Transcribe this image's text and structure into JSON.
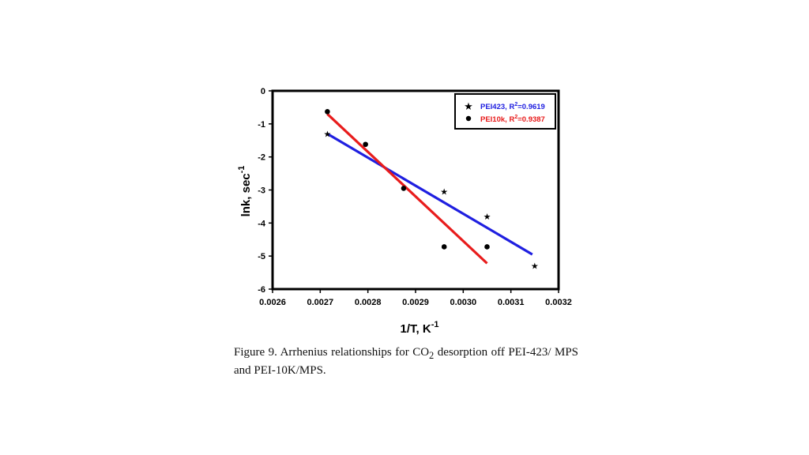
{
  "caption": {
    "label": "Figure 9.",
    "text_before_sub": " Arrhenius relationships for CO",
    "subscript": "2",
    "text_after_sub": " desorption off PEI-423/ MPS and PEI-10K/MPS."
  },
  "chart_data": {
    "type": "scatter",
    "xlabel": "1/T, K",
    "xlabel_sup": "-1",
    "ylabel": "lnk, sec",
    "ylabel_sup": "-1",
    "xlim": [
      0.0026,
      0.0032
    ],
    "ylim": [
      -6,
      0
    ],
    "x_ticks": [
      0.0026,
      0.0027,
      0.0028,
      0.0029,
      0.003,
      0.0031,
      0.0032
    ],
    "x_tick_labels": [
      "0.0026",
      "0.0027",
      "0.0028",
      "0.0029",
      "0.0030",
      "0.0031",
      "0.0032"
    ],
    "y_ticks": [
      0,
      -1,
      -2,
      -3,
      -4,
      -5,
      -6
    ],
    "y_tick_labels": [
      "0",
      "-1",
      "-2",
      "-3",
      "-4",
      "-5",
      "-6"
    ],
    "grid": false,
    "legend_position": "top-right",
    "series": [
      {
        "name": "PEI423, R",
        "name_sup": "2",
        "name_suffix": "=0.9619",
        "marker": "star",
        "color": "#1f1fe0",
        "points": [
          [
            0.002715,
            -1.3
          ],
          [
            0.00296,
            -3.05
          ],
          [
            0.00305,
            -3.8
          ],
          [
            0.00315,
            -5.3
          ]
        ],
        "fit": [
          [
            0.002715,
            -1.3
          ],
          [
            0.003145,
            -4.95
          ]
        ]
      },
      {
        "name": "PEI10k, R",
        "name_sup": "2",
        "name_suffix": "=0.9387",
        "marker": "circle",
        "color": "#e81c1c",
        "points": [
          [
            0.002715,
            -0.63
          ],
          [
            0.002795,
            -1.62
          ],
          [
            0.002875,
            -2.95
          ],
          [
            0.00296,
            -4.72
          ],
          [
            0.00305,
            -4.72
          ]
        ],
        "fit": [
          [
            0.002715,
            -0.7
          ],
          [
            0.00305,
            -5.22
          ]
        ]
      }
    ]
  }
}
